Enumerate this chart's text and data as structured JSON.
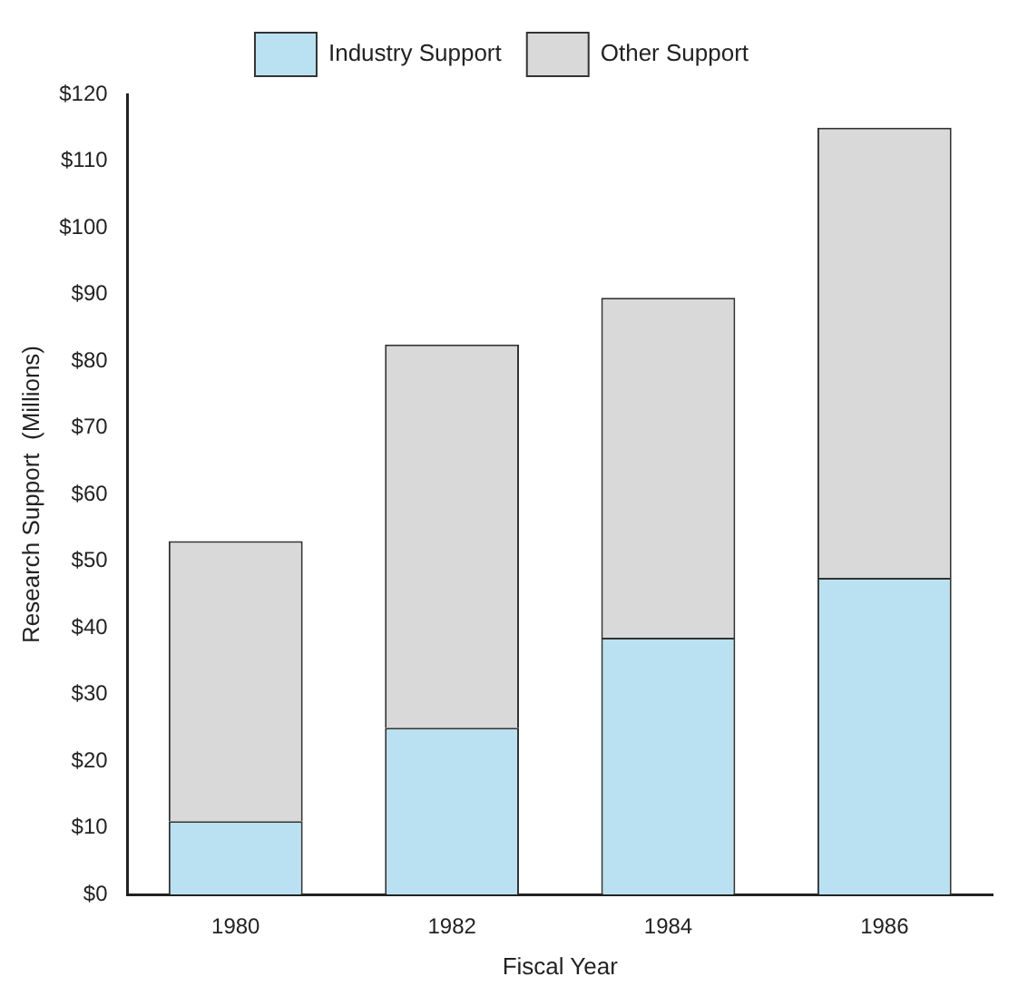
{
  "chart_data": {
    "type": "bar",
    "stacked": true,
    "xlabel": "Fiscal Year",
    "ylabel": "Research Support  (Millions)",
    "categories": [
      "1980",
      "1982",
      "1984",
      "1986"
    ],
    "series": [
      {
        "name": "Industry Support",
        "color": "#b9e1f2",
        "values": [
          11,
          25,
          38.5,
          47.5
        ]
      },
      {
        "name": "Other Support",
        "color": "#d9d9d9",
        "values": [
          42,
          57.5,
          51,
          67.5
        ]
      }
    ],
    "ylim": [
      0,
      120
    ],
    "yticks": [
      {
        "value": 0,
        "label": "$0"
      },
      {
        "value": 10,
        "label": "$10"
      },
      {
        "value": 20,
        "label": "$20"
      },
      {
        "value": 30,
        "label": "$30"
      },
      {
        "value": 40,
        "label": "$40"
      },
      {
        "value": 50,
        "label": "$50"
      },
      {
        "value": 60,
        "label": "$60"
      },
      {
        "value": 70,
        "label": "$70"
      },
      {
        "value": 80,
        "label": "$80"
      },
      {
        "value": 90,
        "label": "$90"
      },
      {
        "value": 100,
        "label": "$100"
      },
      {
        "value": 110,
        "label": "$110"
      },
      {
        "value": 120,
        "label": "$120"
      }
    ],
    "grid": false,
    "legend": "top"
  }
}
